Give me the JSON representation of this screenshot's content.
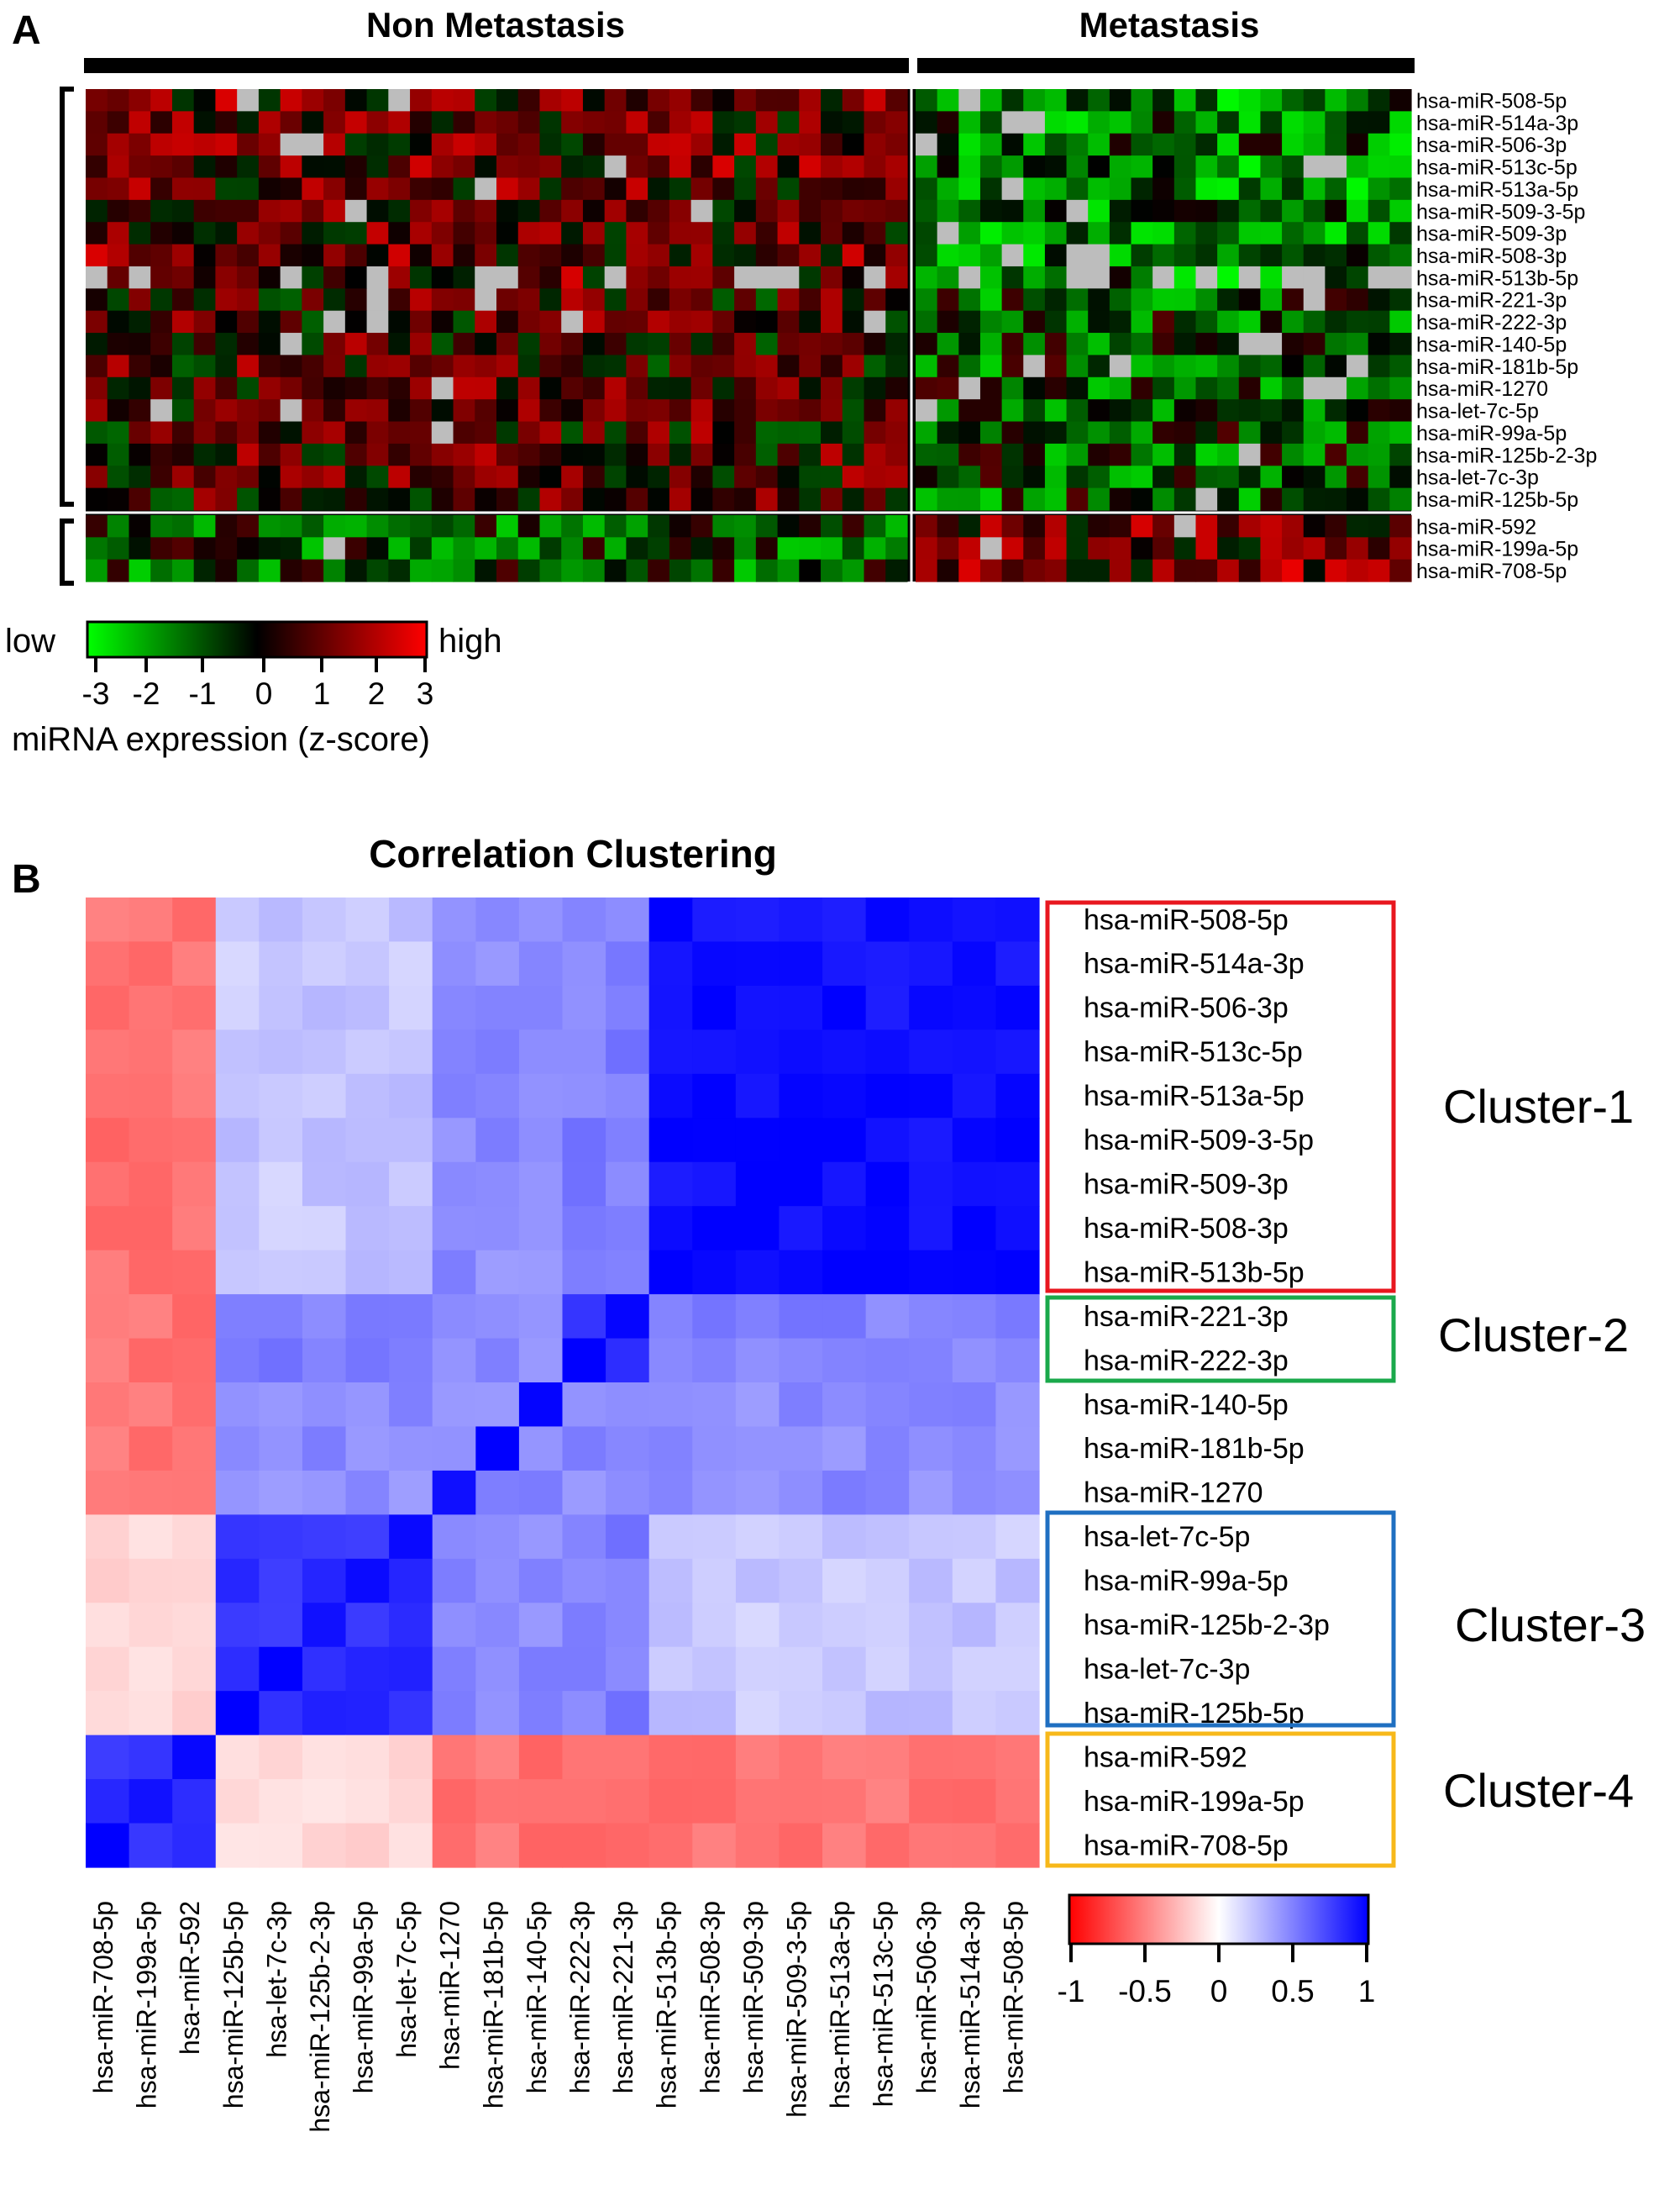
{
  "panel_a": {
    "label": "A",
    "group_labels": [
      "Non Metastasis",
      "Metastasis"
    ],
    "legend": {
      "low": "low",
      "high": "high",
      "ticks": [
        "-3",
        "-2",
        "-1",
        "0",
        "1",
        "2",
        "3"
      ],
      "caption": "miRNA expression (z-score)"
    }
  },
  "panel_b": {
    "label": "B",
    "title": "Correlation Clustering",
    "clusters": [
      "Cluster-1",
      "Cluster-2",
      "Cluster-3",
      "Cluster-4"
    ],
    "legend_ticks": [
      "-1",
      "-0.5",
      "0",
      "0.5",
      "1"
    ]
  },
  "colors": {
    "red": "#ff0000",
    "green": "#00ff00",
    "blue": "#0000ff",
    "missing": "#bdbdbd",
    "cluster1": "#e8171f",
    "cluster2": "#1aa94b",
    "cluster3": "#1f6fc1",
    "cluster4": "#f7b81a"
  },
  "chart_data": [
    {
      "type": "heatmap",
      "rows": [
        "hsa-miR-508-5p",
        "hsa-miR-514a-3p",
        "hsa-miR-506-3p",
        "hsa-miR-513c-5p",
        "hsa-miR-513a-5p",
        "hsa-miR-509-3-5p",
        "hsa-miR-509-3p",
        "hsa-miR-508-3p",
        "hsa-miR-513b-5p",
        "hsa-miR-221-3p",
        "hsa-miR-222-3p",
        "hsa-miR-140-5p",
        "hsa-miR-181b-5p",
        "hsa-miR-1270",
        "hsa-let-7c-5p",
        "hsa-miR-99a-5p",
        "hsa-miR-125b-2-3p",
        "hsa-let-7c-3p",
        "hsa-miR-125b-5p",
        "hsa-miR-592",
        "hsa-miR-199a-5p",
        "hsa-miR-708-5p"
      ],
      "groups": [
        {
          "name": "Non Metastasis",
          "n_samples": 38
        },
        {
          "name": "Metastasis",
          "n_samples": 23
        }
      ],
      "value_range": [
        -3,
        3
      ],
      "legend": {
        "low": "low",
        "high": "high",
        "label": "miRNA expression (z-score)"
      }
    },
    {
      "type": "heatmap",
      "title": "Correlation Clustering",
      "columns": [
        "hsa-miR-708-5p",
        "hsa-miR-199a-5p",
        "hsa-miR-592",
        "hsa-miR-125b-5p",
        "hsa-let-7c-3p",
        "hsa-miR-125b-2-3p",
        "hsa-miR-99a-5p",
        "hsa-let-7c-5p",
        "hsa-miR-1270",
        "hsa-miR-181b-5p",
        "hsa-miR-140-5p",
        "hsa-miR-222-3p",
        "hsa-miR-221-3p",
        "hsa-miR-513b-5p",
        "hsa-miR-508-3p",
        "hsa-miR-509-3p",
        "hsa-miR-509-3-5p",
        "hsa-miR-513a-5p",
        "hsa-miR-513c-5p",
        "hsa-miR-506-3p",
        "hsa-miR-514a-3p",
        "hsa-miR-508-5p"
      ],
      "rows": [
        "hsa-miR-508-5p",
        "hsa-miR-514a-3p",
        "hsa-miR-506-3p",
        "hsa-miR-513c-5p",
        "hsa-miR-513a-5p",
        "hsa-miR-509-3-5p",
        "hsa-miR-509-3p",
        "hsa-miR-508-3p",
        "hsa-miR-513b-5p",
        "hsa-miR-221-3p",
        "hsa-miR-222-3p",
        "hsa-miR-140-5p",
        "hsa-miR-181b-5p",
        "hsa-miR-1270",
        "hsa-let-7c-5p",
        "hsa-miR-99a-5p",
        "hsa-miR-125b-2-3p",
        "hsa-let-7c-3p",
        "hsa-miR-125b-5p",
        "hsa-miR-592",
        "hsa-miR-199a-5p",
        "hsa-miR-708-5p"
      ],
      "clusters": [
        {
          "name": "Cluster-1",
          "members": [
            "hsa-miR-508-5p",
            "hsa-miR-514a-3p",
            "hsa-miR-506-3p",
            "hsa-miR-513c-5p",
            "hsa-miR-513a-5p",
            "hsa-miR-509-3-5p",
            "hsa-miR-509-3p",
            "hsa-miR-508-3p",
            "hsa-miR-513b-5p"
          ]
        },
        {
          "name": "Cluster-2",
          "members": [
            "hsa-miR-221-3p",
            "hsa-miR-222-3p"
          ]
        },
        {
          "name": "Cluster-3",
          "members": [
            "hsa-let-7c-5p",
            "hsa-miR-99a-5p",
            "hsa-miR-125b-2-3p",
            "hsa-let-7c-3p",
            "hsa-miR-125b-5p"
          ]
        },
        {
          "name": "Cluster-4",
          "members": [
            "hsa-miR-592",
            "hsa-miR-199a-5p",
            "hsa-miR-708-5p"
          ]
        }
      ],
      "value_range": [
        -1,
        1
      ],
      "legend_ticks": [
        -1,
        -0.5,
        0,
        0.5,
        1
      ]
    }
  ]
}
